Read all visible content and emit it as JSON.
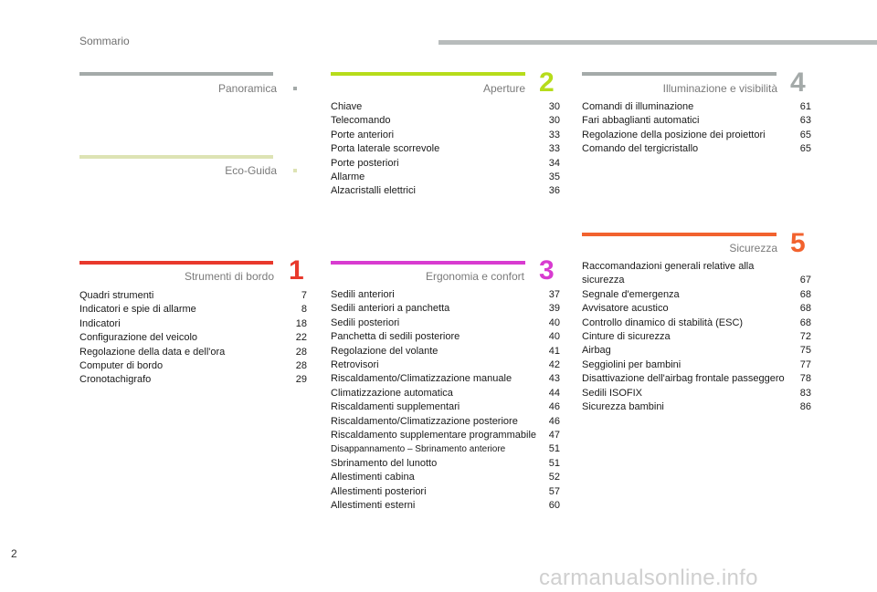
{
  "header": {
    "title": "Sommario"
  },
  "footer": {
    "page_number": "2",
    "watermark": "carmanualsonline.info"
  },
  "colors": {
    "panoramica": "#a4aaa9",
    "eco_guida": "#dde3b4",
    "strumenti": "#e8392c",
    "aperture": "#b6dc1b",
    "ergonomia": "#d83bd0",
    "illuminazione": "#a4aaa9",
    "sicurezza": "#f2622e"
  },
  "sections": {
    "panoramica": {
      "title": "Panoramica"
    },
    "eco_guida": {
      "title": "Eco-Guida"
    },
    "strumenti": {
      "title": "Strumenti di bordo",
      "number": "1",
      "items": [
        {
          "text": "Quadri strumenti",
          "page": "7"
        },
        {
          "text": "Indicatori e spie di allarme",
          "page": "8"
        },
        {
          "text": "Indicatori",
          "page": "18"
        },
        {
          "text": "Configurazione del veicolo",
          "page": "22"
        },
        {
          "text": "Regolazione della data e dell'ora",
          "page": "28"
        },
        {
          "text": "Computer di bordo",
          "page": "28"
        },
        {
          "text": "Cronotachigrafo",
          "page": "29"
        }
      ]
    },
    "aperture": {
      "title": "Aperture",
      "number": "2",
      "items": [
        {
          "text": "Chiave",
          "page": "30"
        },
        {
          "text": "Telecomando",
          "page": "30"
        },
        {
          "text": "Porte anteriori",
          "page": "33"
        },
        {
          "text": "Porta laterale scorrevole",
          "page": "33"
        },
        {
          "text": "Porte posteriori",
          "page": "34"
        },
        {
          "text": "Allarme",
          "page": "35"
        },
        {
          "text": "Alzacristalli elettrici",
          "page": "36"
        }
      ]
    },
    "ergonomia": {
      "title": "Ergonomia e confort",
      "number": "3",
      "items": [
        {
          "text": "Sedili anteriori",
          "page": "37"
        },
        {
          "text": "Sedili anteriori a panchetta",
          "page": "39"
        },
        {
          "text": "Sedili posteriori",
          "page": "40"
        },
        {
          "text": "Panchetta di sedili posteriore",
          "page": "40"
        },
        {
          "text": "Regolazione del volante",
          "page": "41"
        },
        {
          "text": "Retrovisori",
          "page": "42"
        },
        {
          "text": "Riscaldamento/Climatizzazione manuale",
          "page": "43"
        },
        {
          "text": "Climatizzazione automatica",
          "page": "44"
        },
        {
          "text": "Riscaldamenti supplementari",
          "page": "46"
        },
        {
          "text": "Riscaldamento/Climatizzazione posteriore",
          "page": "46"
        },
        {
          "text": "Riscaldamento supplementare programmabile",
          "page": "47"
        },
        {
          "text": "Disappannamento – Sbrinamento anteriore",
          "page": "51"
        },
        {
          "text": "Sbrinamento del lunotto",
          "page": "51"
        },
        {
          "text": "Allestimenti cabina",
          "page": "52"
        },
        {
          "text": "Allestimenti posteriori",
          "page": "57"
        },
        {
          "text": "Allestimenti esterni",
          "page": "60"
        }
      ]
    },
    "illuminazione": {
      "title": "Illuminazione e visibilità",
      "number": "4",
      "items": [
        {
          "text": "Comandi di illuminazione",
          "page": "61"
        },
        {
          "text": "Fari abbaglianti automatici",
          "page": "63"
        },
        {
          "text": "Regolazione della posizione dei proiettori",
          "page": "65"
        },
        {
          "text": "Comando del tergicristallo",
          "page": "65"
        }
      ]
    },
    "sicurezza": {
      "title": "Sicurezza",
      "number": "5",
      "items": [
        {
          "text": "Raccomandazioni generali relative alla sicurezza",
          "page": "67"
        },
        {
          "text": "Segnale d'emergenza",
          "page": "68"
        },
        {
          "text": "Avvisatore acustico",
          "page": "68"
        },
        {
          "text": "Controllo dinamico di stabilità (ESC)",
          "page": "68"
        },
        {
          "text": "Cinture di sicurezza",
          "page": "72"
        },
        {
          "text": "Airbag",
          "page": "75"
        },
        {
          "text": "Seggiolini per bambini",
          "page": "77"
        },
        {
          "text": "Disattivazione dell'airbag frontale passeggero",
          "page": "78"
        },
        {
          "text": "Sedili ISOFIX",
          "page": "83"
        },
        {
          "text": "Sicurezza bambini",
          "page": "86"
        }
      ]
    }
  }
}
